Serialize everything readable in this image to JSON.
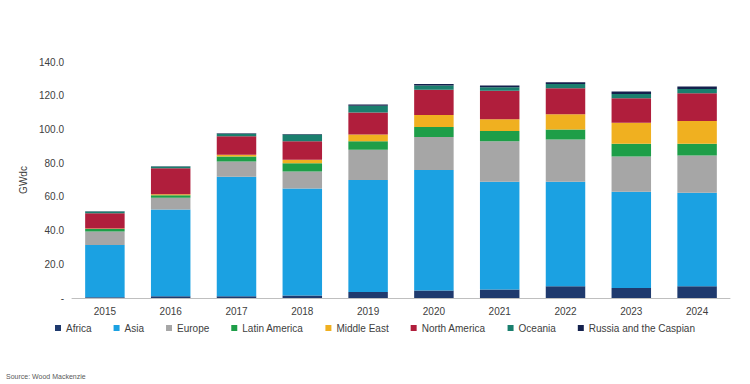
{
  "chart_data": {
    "type": "bar",
    "stacked": true,
    "grid": false,
    "legend": "bottom",
    "y_label": "GWdc",
    "annotations": [
      "Source: Wood Mackenzie"
    ],
    "categories": [
      "2015",
      "2016",
      "2017",
      "2018",
      "2019",
      "2020",
      "2021",
      "2022",
      "2023",
      "2024"
    ],
    "ylim": [
      0,
      140
    ],
    "yticks": [
      {
        "value": 0,
        "label": "-"
      },
      {
        "value": 20,
        "label": "20.0"
      },
      {
        "value": 40,
        "label": "40.0"
      },
      {
        "value": 60,
        "label": "60.0"
      },
      {
        "value": 80,
        "label": "80.0"
      },
      {
        "value": 100,
        "label": "100.0"
      },
      {
        "value": 120,
        "label": "120.0"
      },
      {
        "value": 140,
        "label": "140.0"
      }
    ],
    "series": [
      {
        "name": "Africa",
        "color": "#1f3a6e",
        "values": [
          0.5,
          1,
          1,
          1.5,
          3.5,
          4.5,
          5,
          7,
          6,
          7
        ]
      },
      {
        "name": "Asia",
        "color": "#1ba1e2",
        "values": [
          31,
          51.5,
          71,
          63.5,
          66.5,
          71.5,
          64,
          62,
          57,
          55.5
        ]
      },
      {
        "name": "Europe",
        "color": "#a6a6a6",
        "values": [
          8,
          7,
          9,
          10,
          18,
          19.5,
          24,
          25,
          21,
          22
        ]
      },
      {
        "name": "Latin America",
        "color": "#1e9e48",
        "values": [
          1.5,
          1.5,
          3,
          5,
          5,
          6,
          6,
          6,
          7.5,
          7
        ]
      },
      {
        "name": "Middle East",
        "color": "#f0b020",
        "values": [
          0.3,
          0.5,
          1,
          2,
          4,
          7,
          7,
          9,
          12.5,
          13.5
        ]
      },
      {
        "name": "North America",
        "color": "#b01e3c",
        "values": [
          9,
          15.5,
          11,
          11,
          13,
          15,
          17,
          15.5,
          14.5,
          16.5
        ]
      },
      {
        "name": "Oceania",
        "color": "#1a7f6e",
        "values": [
          1,
          1,
          1.5,
          4,
          4,
          2.5,
          2,
          2.5,
          2.5,
          2.5
        ]
      },
      {
        "name": "Russia and the Caspian",
        "color": "#14214d",
        "values": [
          0.2,
          0.2,
          0.3,
          0.3,
          0.8,
          1,
          1,
          1,
          1.5,
          1.5
        ]
      }
    ]
  }
}
